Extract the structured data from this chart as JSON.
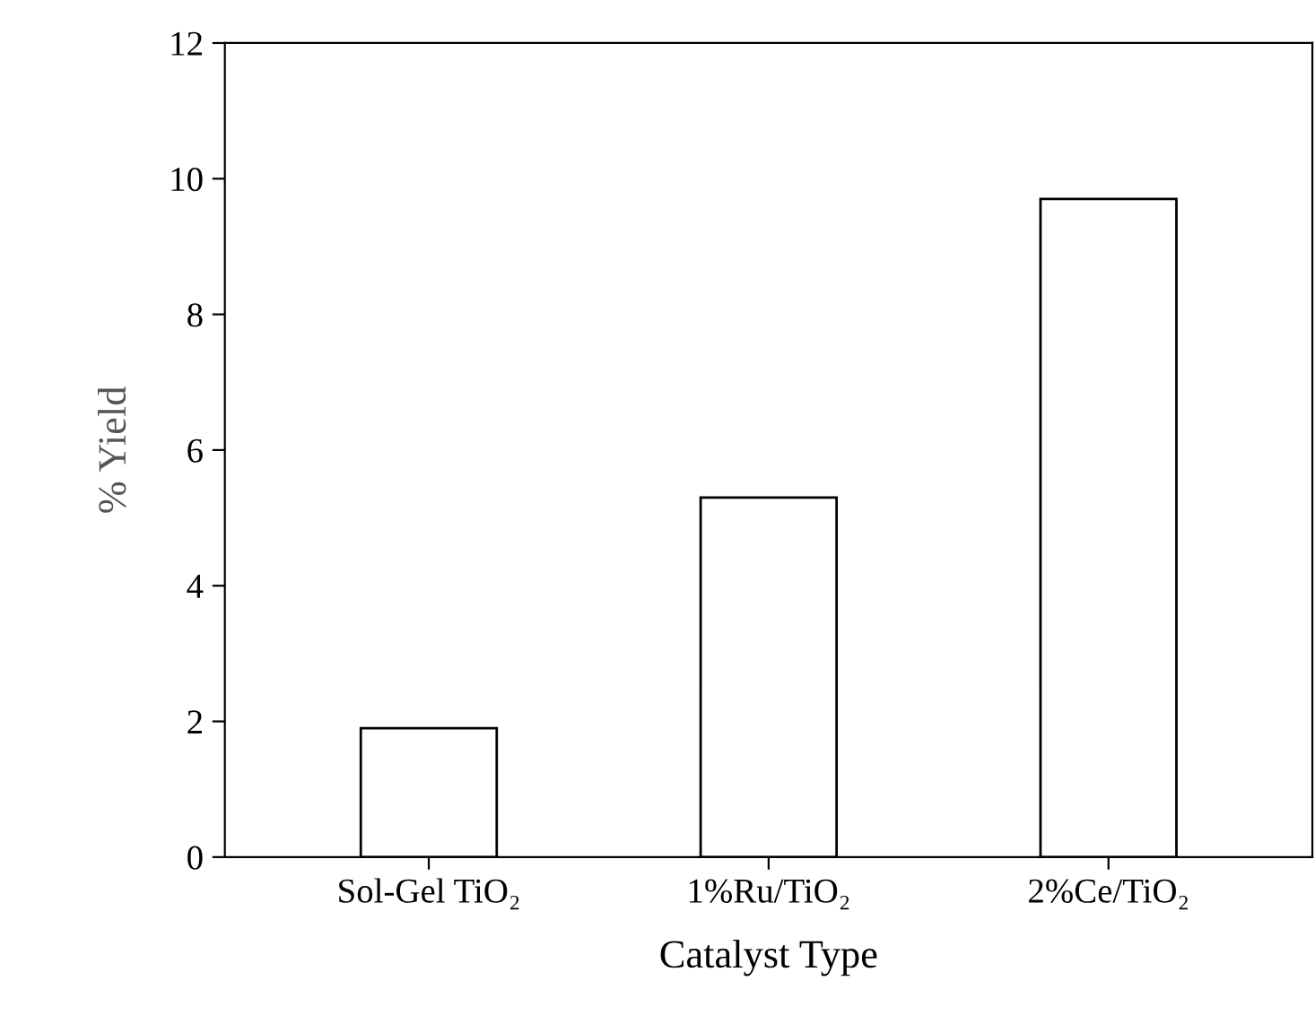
{
  "chart_data": {
    "type": "bar",
    "xlabel": "Catalyst Type",
    "ylabel": "% Yield",
    "categories": [
      "Sol-Gel TiO₂",
      "1%Ru/TiO₂",
      "2%Ce/TiO₂"
    ],
    "values": [
      1.9,
      5.3,
      9.7
    ],
    "color": "#ffffff",
    "ylim": [
      0,
      12
    ],
    "yticks": [
      0,
      2,
      4,
      6,
      8,
      10,
      12
    ],
    "grid": false,
    "legend": false
  }
}
